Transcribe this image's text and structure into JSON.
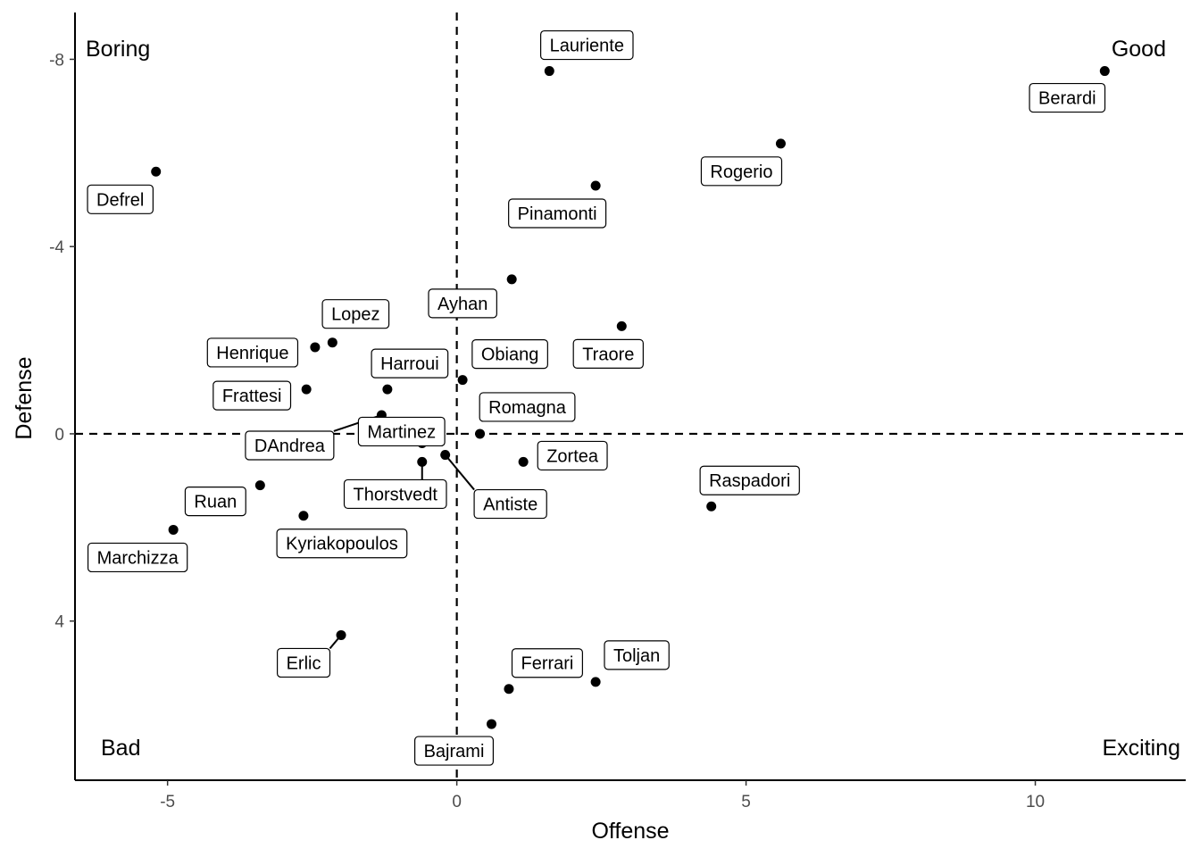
{
  "chart_data": {
    "type": "scatter",
    "xlabel": "Offense",
    "ylabel": "Defense",
    "xlim": [
      -6.6,
      12.6
    ],
    "ylim": [
      -9.0,
      7.4
    ],
    "y_reversed": true,
    "x_ticks": [
      -5,
      0,
      5,
      10
    ],
    "x_tick_labels": [
      "-5",
      "0",
      "5",
      "10"
    ],
    "y_ticks": [
      -8,
      -4,
      0,
      4
    ],
    "y_tick_labels": [
      "-8",
      "-4",
      "0",
      "4"
    ],
    "reference_lines": [
      {
        "axis": "x",
        "value": 0,
        "style": "dashed"
      },
      {
        "axis": "y",
        "value": 0,
        "style": "dashed"
      }
    ],
    "quadrant_labels": {
      "top_left": "Boring",
      "top_right": "Good",
      "bottom_left": "Bad",
      "bottom_right": "Exciting"
    },
    "grid": false,
    "points": [
      {
        "name": "Lauriente",
        "x": 1.6,
        "y": -7.75
      },
      {
        "name": "Berardi",
        "x": 11.2,
        "y": -7.75
      },
      {
        "name": "Rogerio",
        "x": 5.6,
        "y": -6.2
      },
      {
        "name": "Defrel",
        "x": -5.2,
        "y": -5.6
      },
      {
        "name": "Pinamonti",
        "x": 2.4,
        "y": -5.3
      },
      {
        "name": "Ayhan",
        "x": 0.95,
        "y": -3.3
      },
      {
        "name": "Traore",
        "x": 2.85,
        "y": -2.3
      },
      {
        "name": "Lopez",
        "x": -2.15,
        "y": -1.95
      },
      {
        "name": "Henrique",
        "x": -2.45,
        "y": -1.85
      },
      {
        "name": "Obiang",
        "x": 0.1,
        "y": -1.15
      },
      {
        "name": "Harroui",
        "x": -1.2,
        "y": -0.95
      },
      {
        "name": "Frattesi",
        "x": -2.6,
        "y": -0.95
      },
      {
        "name": "DAndrea",
        "x": -1.3,
        "y": -0.4
      },
      {
        "name": "Romagna",
        "x": 0.4,
        "y": 0.0
      },
      {
        "name": "Martinez",
        "x": -0.6,
        "y": 0.2
      },
      {
        "name": "Antiste",
        "x": -0.2,
        "y": 0.45
      },
      {
        "name": "Thorstvedt",
        "x": -0.6,
        "y": 0.6
      },
      {
        "name": "Zortea",
        "x": 1.15,
        "y": 0.6
      },
      {
        "name": "Ruan",
        "x": -3.4,
        "y": 1.1
      },
      {
        "name": "Raspadori",
        "x": 4.4,
        "y": 1.55
      },
      {
        "name": "Kyriakopoulos",
        "x": -2.65,
        "y": 1.75
      },
      {
        "name": "Marchizza",
        "x": -4.9,
        "y": 2.05
      },
      {
        "name": "Erlic",
        "x": -2.0,
        "y": 4.3
      },
      {
        "name": "Toljan",
        "x": 2.4,
        "y": 5.3
      },
      {
        "name": "Ferrari",
        "x": 0.9,
        "y": 5.45
      },
      {
        "name": "Bajrami",
        "x": 0.6,
        "y": 6.2
      }
    ]
  }
}
